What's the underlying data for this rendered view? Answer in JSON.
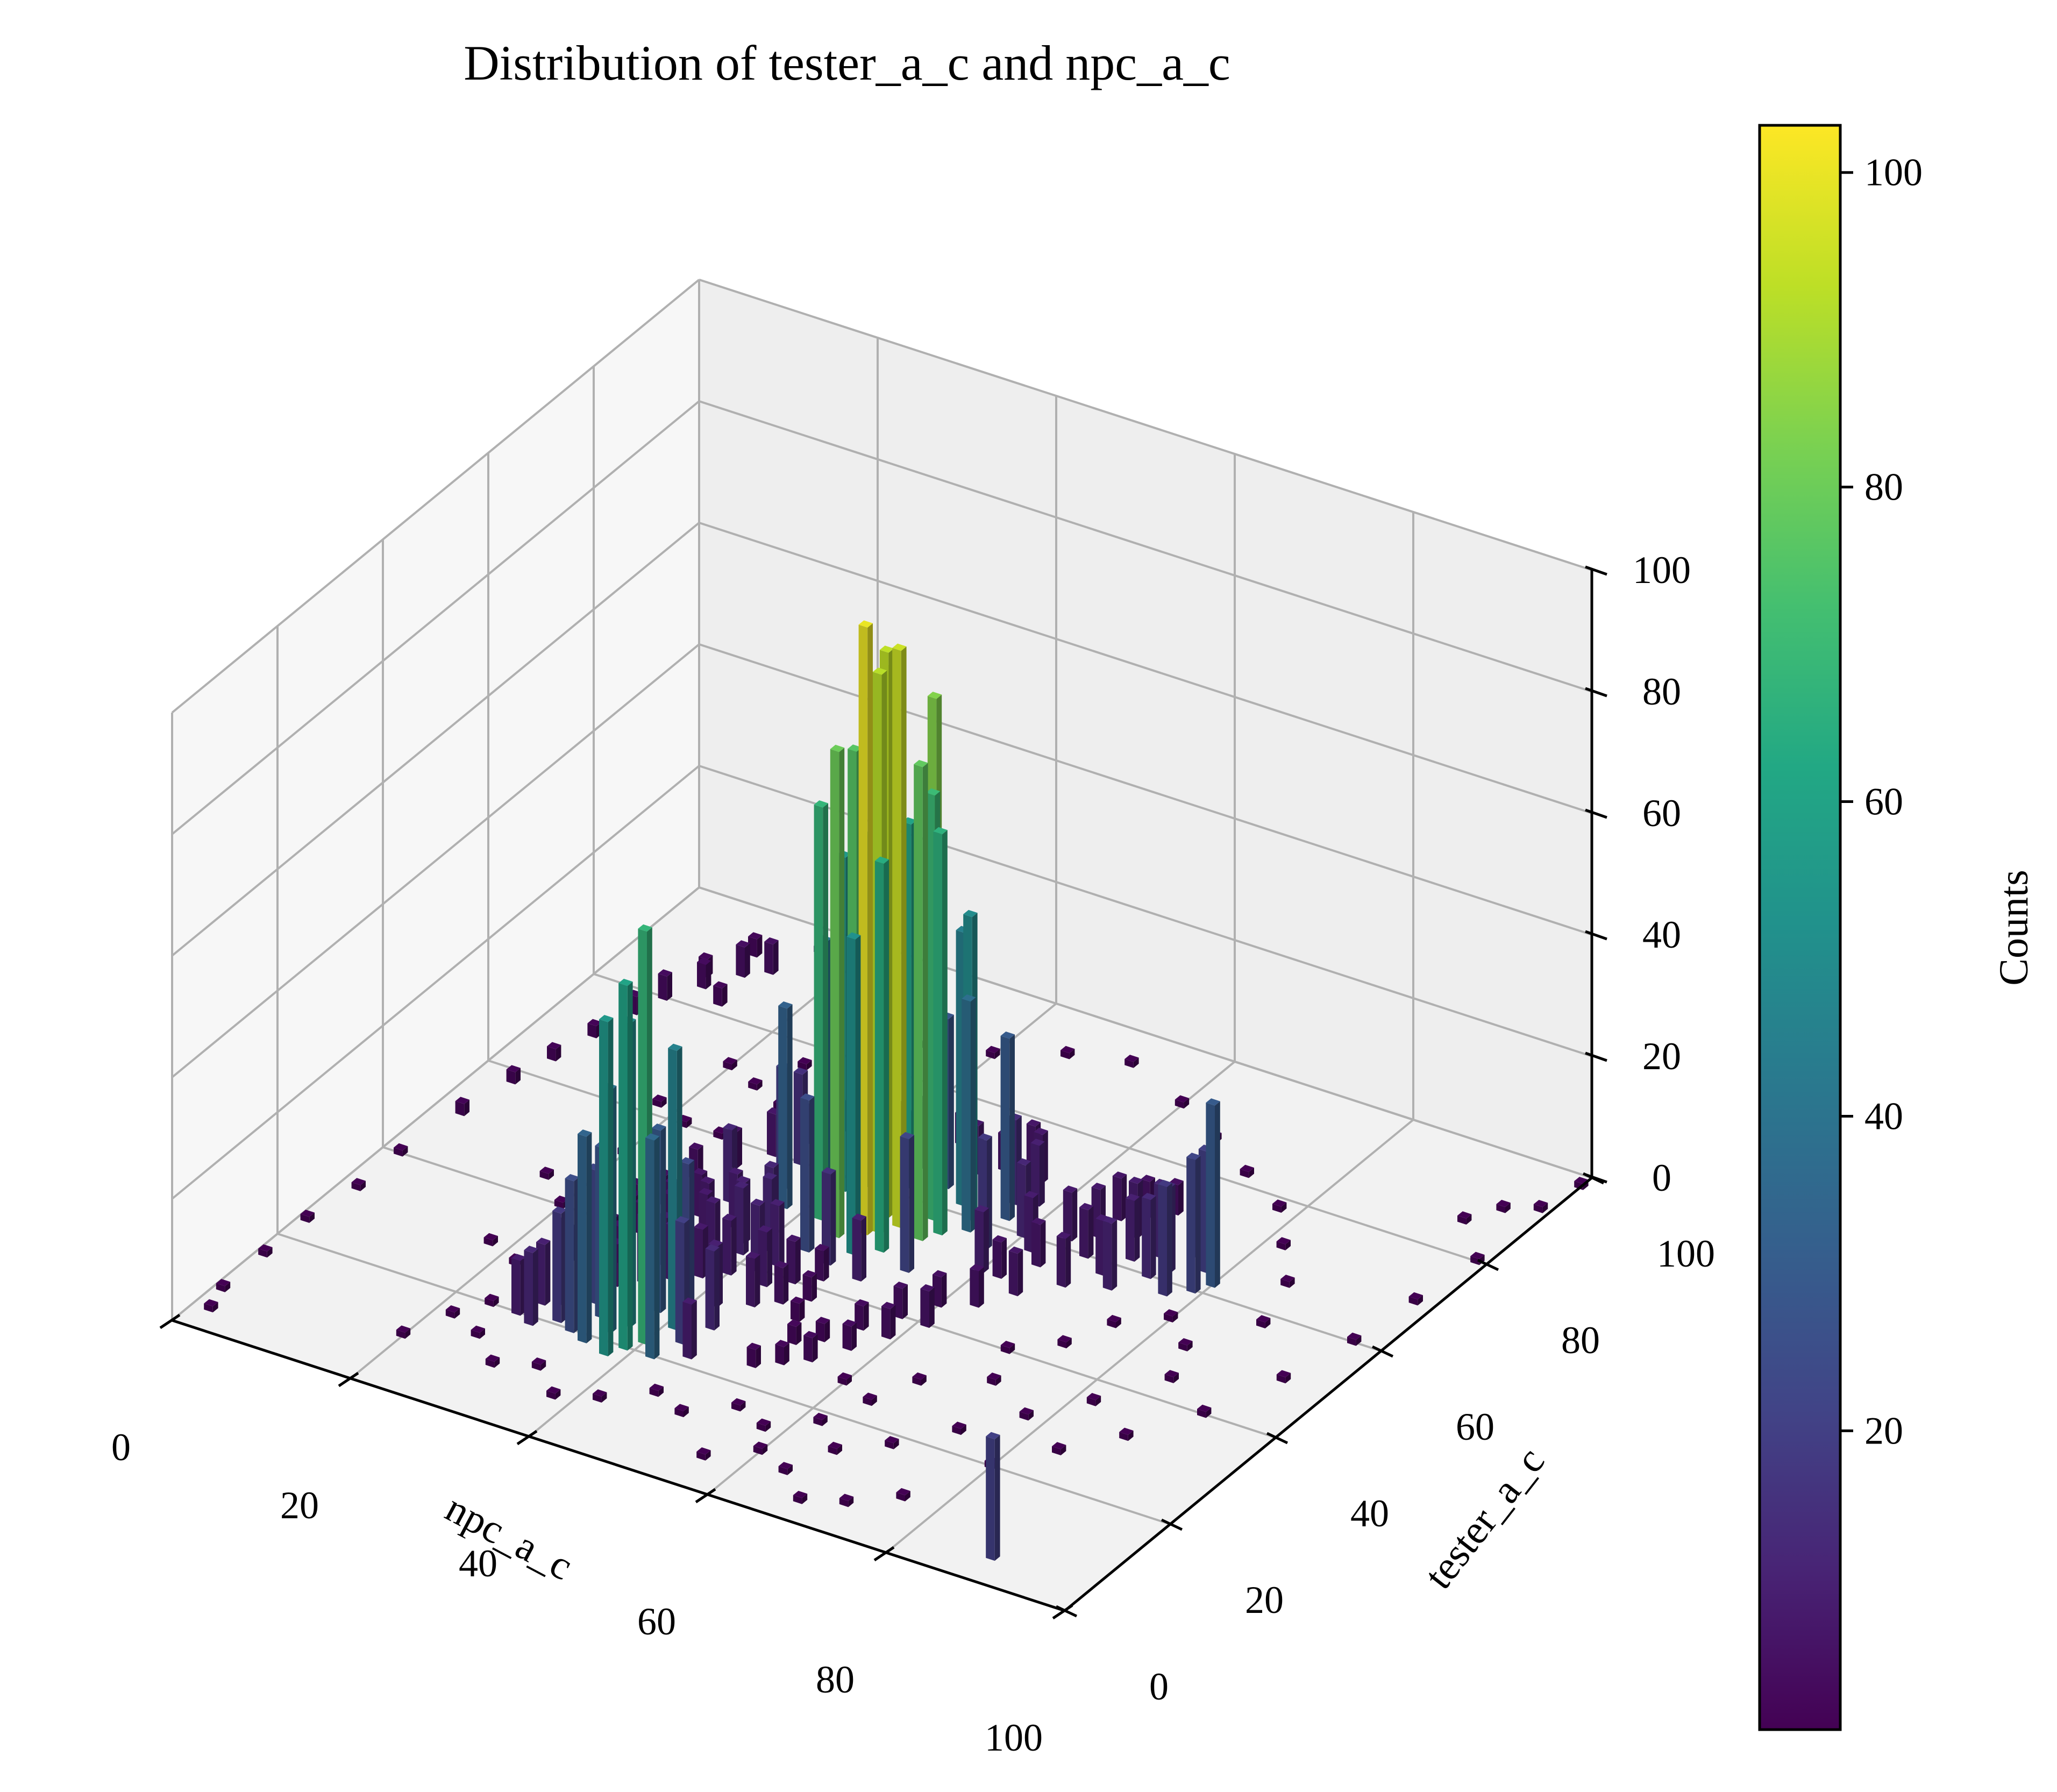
{
  "chart_data": {
    "type": "bar3d",
    "title": "Distribution of tester_a_c and npc_a_c",
    "xlabel": "npc_a_c",
    "ylabel": "tester_a_c",
    "zlabel": "",
    "xlim": [
      0,
      100
    ],
    "ylim": [
      0,
      100
    ],
    "zlim": [
      0,
      100
    ],
    "xticks": [
      0,
      20,
      40,
      60,
      80,
      100
    ],
    "yticks": [
      0,
      20,
      40,
      60,
      80,
      100
    ],
    "zticks": [
      0,
      20,
      40,
      60,
      80,
      100
    ],
    "colormap": "viridis",
    "colorbar": {
      "label": "Counts",
      "range": [
        1,
        103
      ],
      "ticks": [
        20,
        40,
        60,
        80,
        100
      ]
    },
    "bin_width": 1,
    "grid": true,
    "bars": [
      {
        "x": 47,
        "y": 52,
        "z": 100
      },
      {
        "x": 49,
        "y": 55,
        "z": 95
      },
      {
        "x": 47,
        "y": 56,
        "z": 93
      },
      {
        "x": 48,
        "y": 53,
        "z": 92
      },
      {
        "x": 46,
        "y": 58,
        "z": 88
      },
      {
        "x": 50,
        "y": 60,
        "z": 84
      },
      {
        "x": 45,
        "y": 50,
        "z": 80
      },
      {
        "x": 52,
        "y": 54,
        "z": 78
      },
      {
        "x": 44,
        "y": 55,
        "z": 76
      },
      {
        "x": 43,
        "y": 57,
        "z": 74
      },
      {
        "x": 45,
        "y": 60,
        "z": 72
      },
      {
        "x": 51,
        "y": 58,
        "z": 70
      },
      {
        "x": 42,
        "y": 52,
        "z": 68
      },
      {
        "x": 53,
        "y": 56,
        "z": 66
      },
      {
        "x": 50,
        "y": 50,
        "z": 64
      },
      {
        "x": 46,
        "y": 62,
        "z": 60
      },
      {
        "x": 43,
        "y": 60,
        "z": 58
      },
      {
        "x": 41,
        "y": 58,
        "z": 55
      },
      {
        "x": 48,
        "y": 48,
        "z": 52
      },
      {
        "x": 54,
        "y": 60,
        "z": 50
      },
      {
        "x": 52,
        "y": 62,
        "z": 45
      },
      {
        "x": 40,
        "y": 56,
        "z": 42
      },
      {
        "x": 55,
        "y": 58,
        "z": 38
      },
      {
        "x": 42,
        "y": 63,
        "z": 35
      },
      {
        "x": 38,
        "y": 52,
        "z": 33
      },
      {
        "x": 57,
        "y": 62,
        "z": 30
      },
      {
        "x": 49,
        "y": 64,
        "z": 28
      },
      {
        "x": 39,
        "y": 60,
        "z": 26
      },
      {
        "x": 44,
        "y": 46,
        "z": 25
      },
      {
        "x": 54,
        "y": 48,
        "z": 22
      },
      {
        "x": 36,
        "y": 55,
        "z": 20
      },
      {
        "x": 58,
        "y": 56,
        "z": 18
      },
      {
        "x": 40,
        "y": 64,
        "z": 17
      },
      {
        "x": 35,
        "y": 60,
        "z": 15
      },
      {
        "x": 47,
        "y": 45,
        "z": 15
      },
      {
        "x": 56,
        "y": 65,
        "z": 14
      },
      {
        "x": 33,
        "y": 50,
        "z": 12
      },
      {
        "x": 60,
        "y": 60,
        "z": 12
      },
      {
        "x": 45,
        "y": 66,
        "z": 11
      },
      {
        "x": 51,
        "y": 44,
        "z": 10
      },
      {
        "x": 40,
        "y": 22,
        "z": 68
      },
      {
        "x": 39,
        "y": 20,
        "z": 60
      },
      {
        "x": 38,
        "y": 18,
        "z": 55
      },
      {
        "x": 37,
        "y": 24,
        "z": 50
      },
      {
        "x": 41,
        "y": 26,
        "z": 46
      },
      {
        "x": 36,
        "y": 22,
        "z": 40
      },
      {
        "x": 42,
        "y": 20,
        "z": 36
      },
      {
        "x": 35,
        "y": 19,
        "z": 34
      },
      {
        "x": 38,
        "y": 28,
        "z": 30
      },
      {
        "x": 34,
        "y": 24,
        "z": 28
      },
      {
        "x": 33,
        "y": 20,
        "z": 25
      },
      {
        "x": 40,
        "y": 30,
        "z": 24
      },
      {
        "x": 32,
        "y": 26,
        "z": 22
      },
      {
        "x": 43,
        "y": 24,
        "z": 20
      },
      {
        "x": 31,
        "y": 21,
        "z": 18
      },
      {
        "x": 36,
        "y": 30,
        "z": 16
      },
      {
        "x": 30,
        "y": 24,
        "z": 14
      },
      {
        "x": 44,
        "y": 28,
        "z": 13
      },
      {
        "x": 29,
        "y": 19,
        "z": 12
      },
      {
        "x": 34,
        "y": 32,
        "z": 11
      },
      {
        "x": 28,
        "y": 23,
        "z": 10
      },
      {
        "x": 42,
        "y": 32,
        "z": 10
      },
      {
        "x": 27,
        "y": 20,
        "z": 9
      },
      {
        "x": 45,
        "y": 22,
        "z": 9
      },
      {
        "x": 80,
        "y": 62,
        "z": 30
      },
      {
        "x": 79,
        "y": 60,
        "z": 22
      },
      {
        "x": 78,
        "y": 64,
        "z": 20
      },
      {
        "x": 77,
        "y": 58,
        "z": 18
      },
      {
        "x": 76,
        "y": 66,
        "z": 16
      },
      {
        "x": 75,
        "y": 62,
        "z": 14
      },
      {
        "x": 74,
        "y": 60,
        "z": 13
      },
      {
        "x": 73,
        "y": 64,
        "z": 12
      },
      {
        "x": 72,
        "y": 56,
        "z": 11
      },
      {
        "x": 71,
        "y": 62,
        "z": 10
      },
      {
        "x": 70,
        "y": 58,
        "z": 9
      },
      {
        "x": 69,
        "y": 66,
        "z": 9
      },
      {
        "x": 68,
        "y": 54,
        "z": 8
      },
      {
        "x": 67,
        "y": 60,
        "z": 8
      },
      {
        "x": 66,
        "y": 64,
        "z": 8
      },
      {
        "x": 65,
        "y": 50,
        "z": 7
      },
      {
        "x": 64,
        "y": 56,
        "z": 7
      },
      {
        "x": 63,
        "y": 46,
        "z": 6
      },
      {
        "x": 62,
        "y": 52,
        "z": 6
      },
      {
        "x": 61,
        "y": 40,
        "z": 6
      },
      {
        "x": 60,
        "y": 44,
        "z": 5
      },
      {
        "x": 59,
        "y": 36,
        "z": 5
      },
      {
        "x": 58,
        "y": 40,
        "z": 5
      },
      {
        "x": 57,
        "y": 32,
        "z": 4
      },
      {
        "x": 56,
        "y": 36,
        "z": 4
      },
      {
        "x": 55,
        "y": 28,
        "z": 4
      },
      {
        "x": 54,
        "y": 32,
        "z": 3
      },
      {
        "x": 53,
        "y": 26,
        "z": 3
      },
      {
        "x": 52,
        "y": 30,
        "z": 3
      },
      {
        "x": 51,
        "y": 24,
        "z": 3
      },
      {
        "x": 50,
        "y": 34,
        "z": 3
      },
      {
        "x": 49,
        "y": 38,
        "z": 4
      },
      {
        "x": 48,
        "y": 42,
        "z": 5
      },
      {
        "x": 47,
        "y": 36,
        "z": 6
      },
      {
        "x": 46,
        "y": 40,
        "z": 7
      },
      {
        "x": 45,
        "y": 34,
        "z": 8
      },
      {
        "x": 44,
        "y": 38,
        "z": 9
      },
      {
        "x": 43,
        "y": 42,
        "z": 10
      },
      {
        "x": 42,
        "y": 40,
        "z": 11
      },
      {
        "x": 41,
        "y": 44,
        "z": 12
      },
      {
        "x": 40,
        "y": 46,
        "z": 12
      },
      {
        "x": 39,
        "y": 42,
        "z": 11
      },
      {
        "x": 38,
        "y": 44,
        "z": 10
      },
      {
        "x": 37,
        "y": 40,
        "z": 9
      },
      {
        "x": 36,
        "y": 46,
        "z": 9
      },
      {
        "x": 35,
        "y": 42,
        "z": 8
      },
      {
        "x": 34,
        "y": 44,
        "z": 8
      },
      {
        "x": 33,
        "y": 40,
        "z": 7
      },
      {
        "x": 32,
        "y": 46,
        "z": 7
      },
      {
        "x": 31,
        "y": 42,
        "z": 6
      },
      {
        "x": 30,
        "y": 44,
        "z": 6
      },
      {
        "x": 29,
        "y": 40,
        "z": 5
      },
      {
        "x": 28,
        "y": 46,
        "z": 5
      },
      {
        "x": 27,
        "y": 42,
        "z": 4
      },
      {
        "x": 26,
        "y": 44,
        "z": 4
      },
      {
        "x": 25,
        "y": 40,
        "z": 3
      },
      {
        "x": 60,
        "y": 52,
        "z": 10
      },
      {
        "x": 62,
        "y": 58,
        "z": 9
      },
      {
        "x": 64,
        "y": 62,
        "z": 8
      },
      {
        "x": 66,
        "y": 68,
        "z": 7
      },
      {
        "x": 68,
        "y": 70,
        "z": 6
      },
      {
        "x": 70,
        "y": 72,
        "z": 5
      },
      {
        "x": 72,
        "y": 74,
        "z": 5
      },
      {
        "x": 74,
        "y": 72,
        "z": 4
      },
      {
        "x": 58,
        "y": 66,
        "z": 10
      },
      {
        "x": 56,
        "y": 70,
        "z": 8
      },
      {
        "x": 54,
        "y": 72,
        "z": 7
      },
      {
        "x": 52,
        "y": 70,
        "z": 6
      },
      {
        "x": 50,
        "y": 68,
        "z": 8
      },
      {
        "x": 48,
        "y": 70,
        "z": 6
      },
      {
        "x": 46,
        "y": 72,
        "z": 5
      },
      {
        "x": 44,
        "y": 70,
        "z": 5
      },
      {
        "x": 42,
        "y": 68,
        "z": 6
      },
      {
        "x": 40,
        "y": 70,
        "z": 5
      },
      {
        "x": 38,
        "y": 66,
        "z": 6
      },
      {
        "x": 36,
        "y": 68,
        "z": 5
      },
      {
        "x": 34,
        "y": 64,
        "z": 6
      },
      {
        "x": 32,
        "y": 60,
        "z": 7
      },
      {
        "x": 30,
        "y": 56,
        "z": 6
      },
      {
        "x": 28,
        "y": 52,
        "z": 5
      },
      {
        "x": 34,
        "y": 36,
        "z": 8
      },
      {
        "x": 36,
        "y": 34,
        "z": 9
      },
      {
        "x": 38,
        "y": 36,
        "z": 8
      },
      {
        "x": 40,
        "y": 38,
        "z": 9
      },
      {
        "x": 30,
        "y": 34,
        "z": 6
      },
      {
        "x": 28,
        "y": 36,
        "z": 5
      },
      {
        "x": 26,
        "y": 32,
        "z": 4
      },
      {
        "x": 32,
        "y": 30,
        "z": 7
      },
      {
        "x": 89,
        "y": 5,
        "z": 20
      },
      {
        "x": 8,
        "y": 80,
        "z": 4
      },
      {
        "x": 10,
        "y": 84,
        "z": 4
      },
      {
        "x": 12,
        "y": 88,
        "z": 5
      },
      {
        "x": 14,
        "y": 90,
        "z": 5
      },
      {
        "x": 9,
        "y": 86,
        "z": 3
      },
      {
        "x": 11,
        "y": 92,
        "z": 3
      },
      {
        "x": 13,
        "y": 82,
        "z": 3
      },
      {
        "x": 7,
        "y": 76,
        "z": 3
      },
      {
        "x": 6,
        "y": 70,
        "z": 2
      },
      {
        "x": 5,
        "y": 64,
        "z": 2
      },
      {
        "x": 4,
        "y": 58,
        "z": 2
      },
      {
        "x": 3,
        "y": 50,
        "z": 2
      },
      {
        "x": 2,
        "y": 40,
        "z": 1
      },
      {
        "x": 2,
        "y": 32,
        "z": 1
      },
      {
        "x": 1,
        "y": 24,
        "z": 1
      },
      {
        "x": 1,
        "y": 16,
        "z": 1
      },
      {
        "x": 1,
        "y": 8,
        "z": 1
      },
      {
        "x": 2,
        "y": 4,
        "z": 1
      },
      {
        "x": 16,
        "y": 96,
        "z": 1
      },
      {
        "x": 18,
        "y": 99,
        "z": 1
      },
      {
        "x": 80,
        "y": 20,
        "z": 1
      },
      {
        "x": 84,
        "y": 26,
        "z": 1
      },
      {
        "x": 88,
        "y": 32,
        "z": 1
      },
      {
        "x": 92,
        "y": 40,
        "z": 1
      },
      {
        "x": 95,
        "y": 50,
        "z": 1
      },
      {
        "x": 97,
        "y": 60,
        "z": 1
      },
      {
        "x": 98,
        "y": 70,
        "z": 1
      },
      {
        "x": 99,
        "y": 80,
        "z": 1
      },
      {
        "x": 99,
        "y": 92,
        "z": 1
      },
      {
        "x": 100,
        "y": 98,
        "z": 1
      },
      {
        "x": 96,
        "y": 90,
        "z": 1
      },
      {
        "x": 94,
        "y": 86,
        "z": 1
      },
      {
        "x": 76,
        "y": 10,
        "z": 1
      },
      {
        "x": 72,
        "y": 6,
        "z": 1
      },
      {
        "x": 68,
        "y": 4,
        "z": 1
      },
      {
        "x": 64,
        "y": 8,
        "z": 1
      },
      {
        "x": 60,
        "y": 10,
        "z": 1
      },
      {
        "x": 56,
        "y": 6,
        "z": 1
      },
      {
        "x": 20,
        "y": 10,
        "z": 1
      },
      {
        "x": 22,
        "y": 16,
        "z": 1
      },
      {
        "x": 18,
        "y": 30,
        "z": 1
      },
      {
        "x": 16,
        "y": 44,
        "z": 1
      },
      {
        "x": 20,
        "y": 52,
        "z": 1
      },
      {
        "x": 22,
        "y": 60,
        "z": 1
      },
      {
        "x": 24,
        "y": 70,
        "z": 1
      },
      {
        "x": 26,
        "y": 76,
        "z": 1
      },
      {
        "x": 30,
        "y": 82,
        "z": 1
      },
      {
        "x": 34,
        "y": 86,
        "z": 1
      },
      {
        "x": 40,
        "y": 88,
        "z": 1
      },
      {
        "x": 46,
        "y": 92,
        "z": 1
      },
      {
        "x": 52,
        "y": 94,
        "z": 1
      },
      {
        "x": 60,
        "y": 90,
        "z": 1
      },
      {
        "x": 66,
        "y": 86,
        "z": 1
      },
      {
        "x": 72,
        "y": 82,
        "z": 1
      },
      {
        "x": 78,
        "y": 78,
        "z": 1
      },
      {
        "x": 82,
        "y": 72,
        "z": 1
      },
      {
        "x": 86,
        "y": 66,
        "z": 1
      },
      {
        "x": 88,
        "y": 58,
        "z": 1
      },
      {
        "x": 84,
        "y": 50,
        "z": 1
      },
      {
        "x": 86,
        "y": 44,
        "z": 1
      },
      {
        "x": 82,
        "y": 36,
        "z": 1
      },
      {
        "x": 78,
        "y": 30,
        "z": 1
      },
      {
        "x": 74,
        "y": 24,
        "z": 1
      },
      {
        "x": 70,
        "y": 18,
        "z": 1
      },
      {
        "x": 66,
        "y": 14,
        "z": 1
      },
      {
        "x": 62,
        "y": 18,
        "z": 1
      },
      {
        "x": 58,
        "y": 14,
        "z": 1
      },
      {
        "x": 54,
        "y": 16,
        "z": 1
      },
      {
        "x": 50,
        "y": 12,
        "z": 1
      },
      {
        "x": 46,
        "y": 14,
        "z": 1
      },
      {
        "x": 42,
        "y": 10,
        "z": 1
      },
      {
        "x": 38,
        "y": 8,
        "z": 1
      },
      {
        "x": 34,
        "y": 12,
        "z": 1
      },
      {
        "x": 30,
        "y": 10,
        "z": 1
      },
      {
        "x": 26,
        "y": 14,
        "z": 1
      },
      {
        "x": 24,
        "y": 20,
        "z": 1
      },
      {
        "x": 22,
        "y": 28,
        "z": 1
      },
      {
        "x": 24,
        "y": 36,
        "z": 1
      },
      {
        "x": 20,
        "y": 40,
        "z": 1
      },
      {
        "x": 18,
        "y": 62,
        "z": 1
      },
      {
        "x": 20,
        "y": 72,
        "z": 1
      },
      {
        "x": 28,
        "y": 68,
        "z": 1
      },
      {
        "x": 26,
        "y": 60,
        "z": 1
      },
      {
        "x": 24,
        "y": 50,
        "z": 1
      },
      {
        "x": 70,
        "y": 40,
        "z": 1
      },
      {
        "x": 74,
        "y": 44,
        "z": 1
      },
      {
        "x": 76,
        "y": 50,
        "z": 1
      },
      {
        "x": 80,
        "y": 54,
        "z": 1
      },
      {
        "x": 72,
        "y": 34,
        "z": 1
      },
      {
        "x": 66,
        "y": 30,
        "z": 1
      },
      {
        "x": 64,
        "y": 24,
        "z": 1
      },
      {
        "x": 60,
        "y": 26,
        "z": 1
      }
    ]
  }
}
